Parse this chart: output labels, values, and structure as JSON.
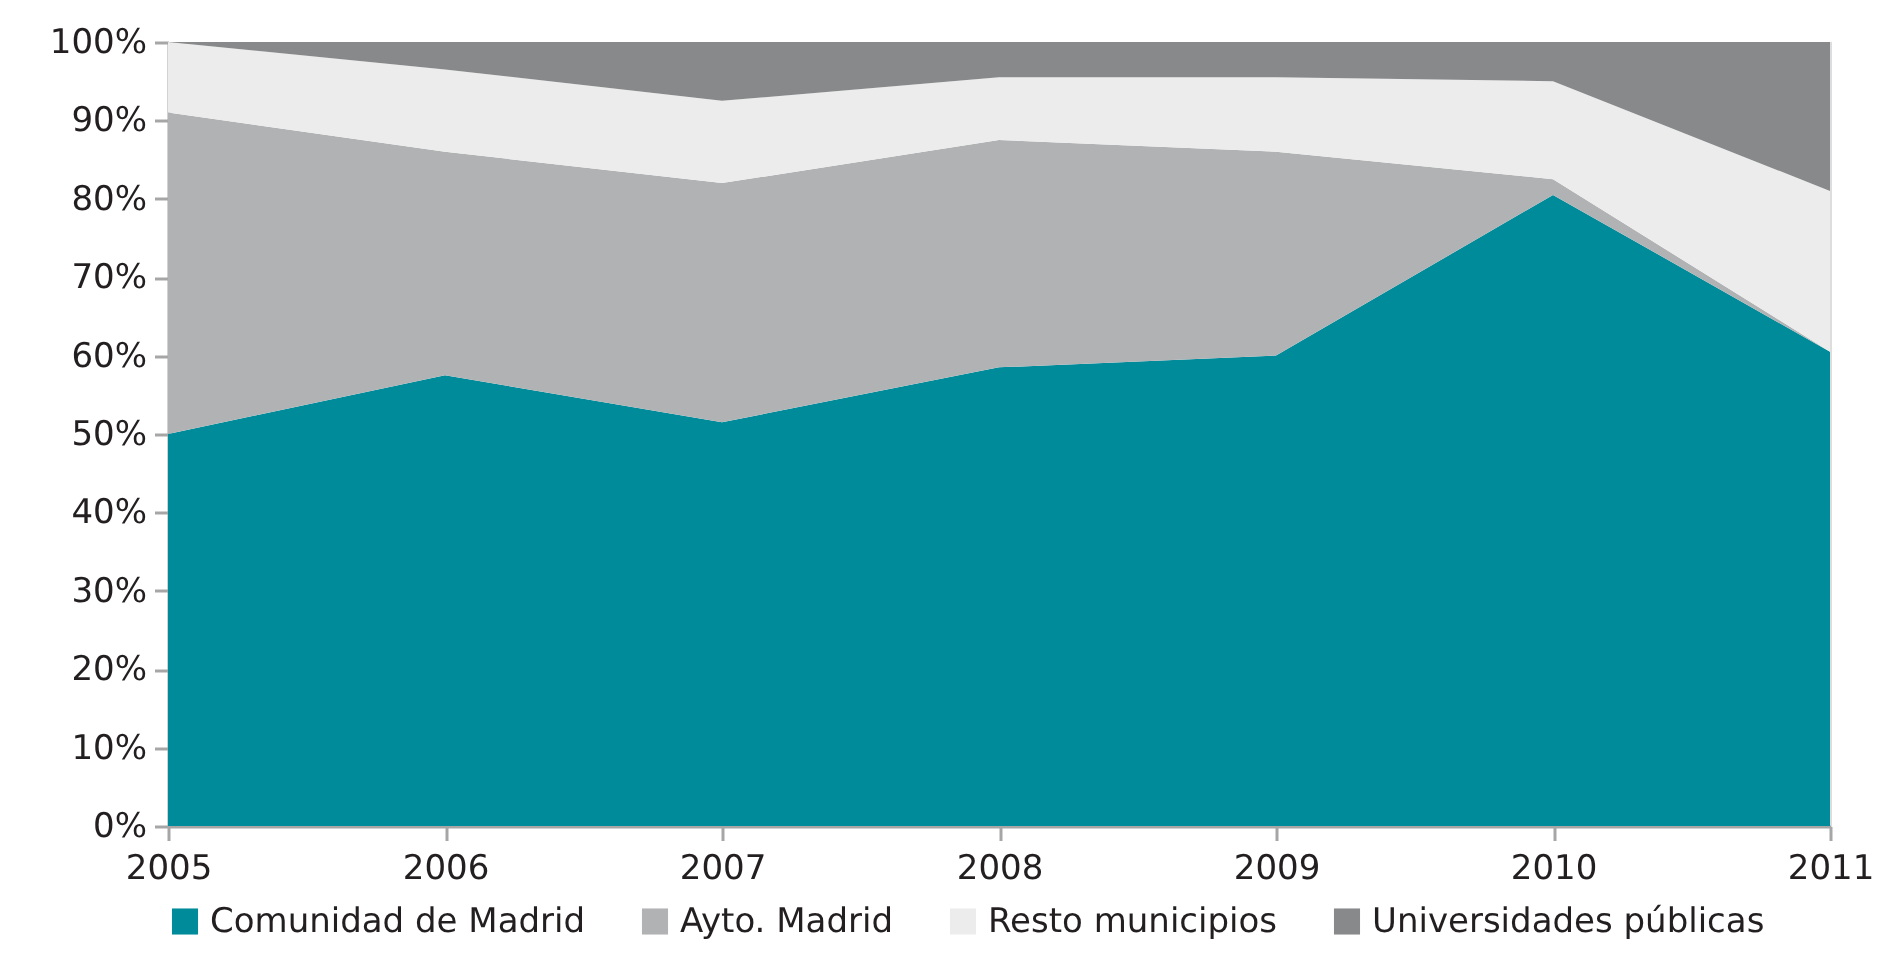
{
  "chart_data": {
    "type": "area",
    "stacked": true,
    "x": [
      2005,
      2006,
      2007,
      2008,
      2009,
      2010,
      2011
    ],
    "xlim": [
      2005,
      2011
    ],
    "xticks": [
      2005,
      2006,
      2007,
      2008,
      2009,
      2010,
      2011
    ],
    "ylim": [
      0,
      100
    ],
    "yticks": [
      {
        "value": 0,
        "label": "0%"
      },
      {
        "value": 10,
        "label": "10%"
      },
      {
        "value": 20,
        "label": "20%"
      },
      {
        "value": 30,
        "label": "30%"
      },
      {
        "value": 40,
        "label": "40%"
      },
      {
        "value": 50,
        "label": "50%"
      },
      {
        "value": 60,
        "label": "60%"
      },
      {
        "value": 70,
        "label": "70%"
      },
      {
        "value": 80,
        "label": "80%"
      },
      {
        "value": 90,
        "label": "90%"
      },
      {
        "value": 100,
        "label": "100%"
      }
    ],
    "series": [
      {
        "name": "Comunidad de Madrid",
        "color": "#008b9b",
        "values": [
          50,
          57.5,
          51.5,
          58.5,
          60,
          80.5,
          60.5
        ]
      },
      {
        "name": "Ayto. Madrid",
        "color": "#b1b2b4",
        "values": [
          41,
          28.5,
          30.5,
          29,
          26,
          2,
          0
        ]
      },
      {
        "name": "Resto municipios",
        "color": "#ebeceb",
        "values": [
          9,
          10.5,
          10.5,
          8,
          9.5,
          12.5,
          20.5
        ]
      },
      {
        "name": "Universidades públicas",
        "color": "#88898b",
        "values": [
          0,
          3.5,
          7.5,
          4.5,
          4.5,
          5,
          19
        ]
      }
    ],
    "legend": "bottom",
    "grid": false
  }
}
